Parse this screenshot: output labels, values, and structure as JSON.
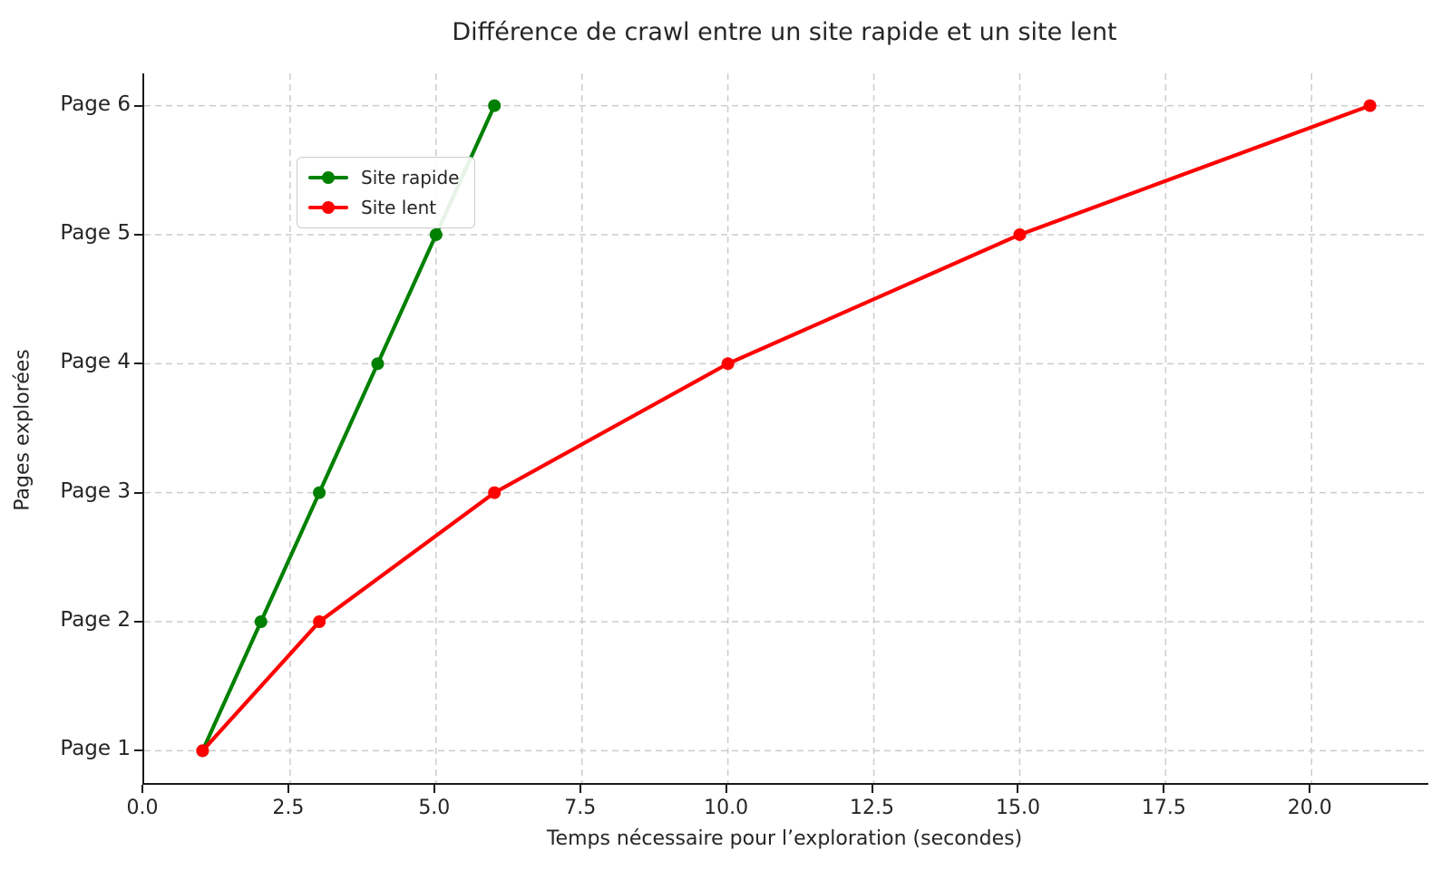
{
  "style": {
    "background": "#ffffff",
    "text_color": "#262626",
    "spine_color": "#1a1a1a",
    "grid_color": "#cccccc",
    "tick_color": "#1a1a1a"
  },
  "chart_data": {
    "type": "line",
    "title": "Différence de crawl entre un site rapide et un site lent",
    "xlabel": "Temps nécessaire pour l’exploration (secondes)",
    "ylabel": "Pages explorées",
    "xlim": [
      0,
      22
    ],
    "ylim": [
      0.75,
      6.25
    ],
    "grid": true,
    "grid_style": "dashed",
    "legend_position": "upper-left",
    "x_ticks": {
      "values": [
        0,
        2.5,
        5,
        7.5,
        10,
        12.5,
        15,
        17.5,
        20
      ],
      "labels": [
        "0.0",
        "2.5",
        "5.0",
        "7.5",
        "10.0",
        "12.5",
        "15.0",
        "17.5",
        "20.0"
      ]
    },
    "y_ticks": {
      "values": [
        1,
        2,
        3,
        4,
        5,
        6
      ],
      "labels": [
        "Page 1",
        "Page 2",
        "Page 3",
        "Page 4",
        "Page 5",
        "Page 6"
      ]
    },
    "series": [
      {
        "name": "Site rapide",
        "color": "#008000",
        "marker": "circle",
        "x": [
          1,
          2,
          3,
          4,
          5,
          6
        ],
        "y": [
          1,
          2,
          3,
          4,
          5,
          6
        ]
      },
      {
        "name": "Site lent",
        "color": "#ff0000",
        "marker": "circle",
        "x": [
          1,
          3,
          6,
          10,
          15,
          21
        ],
        "y": [
          1,
          2,
          3,
          4,
          5,
          6
        ]
      }
    ]
  }
}
